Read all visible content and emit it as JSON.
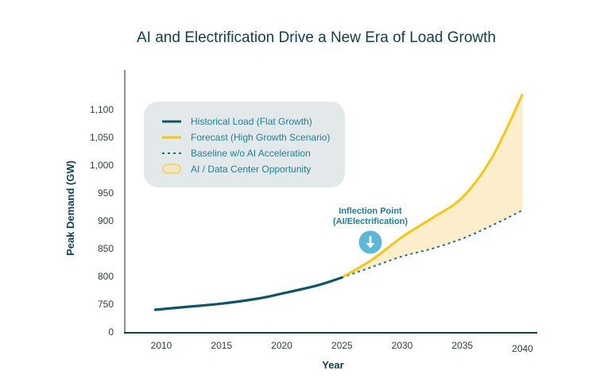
{
  "chart_data": {
    "type": "line",
    "title": "AI and Electrification Drive a New Era of Load Growth",
    "xlabel": "Year",
    "ylabel": "Peak Demand (GW)",
    "x_ticks": [
      "2010",
      "2015",
      "2020",
      "2025",
      "2030",
      "2035",
      "2040"
    ],
    "y_ticks": [
      "0",
      "750",
      "800",
      "850",
      "900",
      "950",
      "1,000",
      "1,050",
      "1,100"
    ],
    "y_tick_values": [
      700,
      750,
      800,
      850,
      900,
      950,
      1000,
      1050,
      1100
    ],
    "axis_break": "0 label placed at the 700 position (broken y-axis)",
    "xlim": [
      2006,
      2041
    ],
    "ylim": [
      700,
      1140
    ],
    "grid": false,
    "legend_position": "top-left",
    "series": [
      {
        "name": "Historical Load (Flat Growth)",
        "style": "solid",
        "color": "#0f5566",
        "x": [
          2009.5,
          2012,
          2015,
          2018,
          2020,
          2023,
          2025
        ],
        "y": [
          740,
          745,
          751,
          760,
          769,
          784,
          798
        ]
      },
      {
        "name": "Forecast (High Growth Scenario)",
        "style": "solid",
        "color": "#f5c518",
        "x": [
          2025,
          2027.5,
          2030,
          2032.5,
          2035,
          2037.5,
          2040
        ],
        "y": [
          798,
          830,
          871,
          905,
          942,
          1015,
          1128
        ]
      },
      {
        "name": "Baseline w/o AI Acceleration",
        "style": "dotted",
        "color": "#1a6f80",
        "x": [
          2025,
          2027.5,
          2030,
          2032.5,
          2035,
          2037.5,
          2040
        ],
        "y": [
          798,
          817,
          836,
          850,
          868,
          892,
          919
        ]
      }
    ],
    "area": {
      "name": "AI / Data Center Opportunity",
      "color": "#fdeecb",
      "between": [
        "Forecast (High Growth Scenario)",
        "Baseline w/o AI Acceleration"
      ]
    },
    "annotation": {
      "lines": [
        "Inflection Point",
        "(AI/Electrification)"
      ],
      "x": 2027.5,
      "icon": "arrow-down-circle-icon",
      "color": "#5bb8d6"
    }
  }
}
